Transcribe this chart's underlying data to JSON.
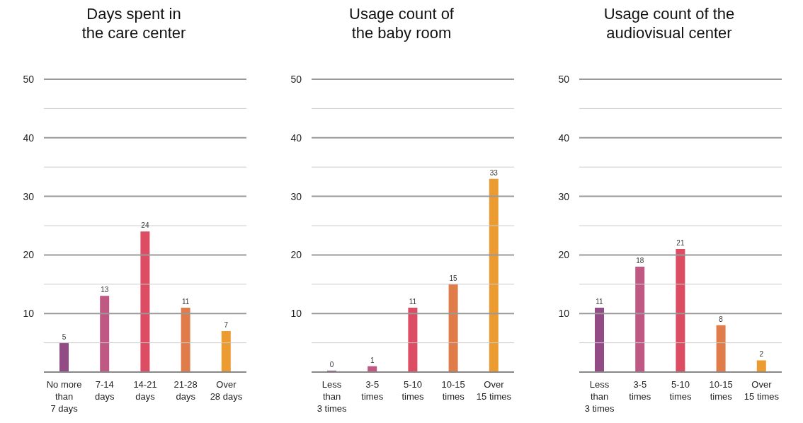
{
  "chart_data": [
    {
      "type": "bar",
      "title": "Days spent in the care center",
      "categories": [
        "No more than 7 days",
        "7-14 days",
        "14-21 days",
        "21-28 days",
        "Over 28 days"
      ],
      "values": [
        5,
        13,
        24,
        11,
        7
      ],
      "colors": [
        "#934b86",
        "#c05884",
        "#dc4c62",
        "#e07b4a",
        "#ec9b30"
      ],
      "ylim": [
        0,
        50
      ],
      "yticks": [
        {
          "value": 0,
          "label": null
        },
        {
          "value": 5,
          "label": null
        },
        10,
        {
          "value": 15,
          "label": null
        },
        20,
        {
          "value": 25,
          "label": null
        },
        30,
        {
          "value": 35,
          "label": null
        },
        40,
        {
          "value": 45,
          "label": null
        },
        50
      ],
      "grid": "y",
      "data_labels": true
    },
    {
      "type": "bar",
      "title": "Usage count of the baby room",
      "categories": [
        "Less than 3 times",
        "3-5 times",
        "5-10 times",
        "10-15 times",
        "Over 15 times"
      ],
      "values": [
        0,
        1,
        11,
        15,
        33
      ],
      "colors": [
        "#934b86",
        "#c05884",
        "#dc4c62",
        "#e07b4a",
        "#ec9b30"
      ],
      "ylim": [
        0,
        50
      ],
      "yticks": [
        {
          "value": 0,
          "label": null
        },
        {
          "value": 5,
          "label": null
        },
        10,
        {
          "value": 15,
          "label": null
        },
        20,
        {
          "value": 25,
          "label": null
        },
        30,
        {
          "value": 35,
          "label": null
        },
        40,
        {
          "value": 45,
          "label": null
        },
        50
      ],
      "grid": "y",
      "data_labels": true
    },
    {
      "type": "bar",
      "title": "Usage count of the audiovisual center",
      "categories": [
        "Less than 3 times",
        "3-5 times",
        "5-10 times",
        "10-15 times",
        "Over 15 times"
      ],
      "values": [
        11,
        18,
        21,
        8,
        2
      ],
      "colors": [
        "#934b86",
        "#c05884",
        "#dc4c62",
        "#e07b4a",
        "#ec9b30"
      ],
      "ylim": [
        0,
        50
      ],
      "yticks": [
        {
          "value": 0,
          "label": null
        },
        {
          "value": 5,
          "label": null
        },
        10,
        {
          "value": 15,
          "label": null
        },
        20,
        {
          "value": 25,
          "label": null
        },
        30,
        {
          "value": 35,
          "label": null
        },
        40,
        {
          "value": 45,
          "label": null
        },
        50
      ],
      "grid": "y",
      "data_labels": true
    }
  ]
}
